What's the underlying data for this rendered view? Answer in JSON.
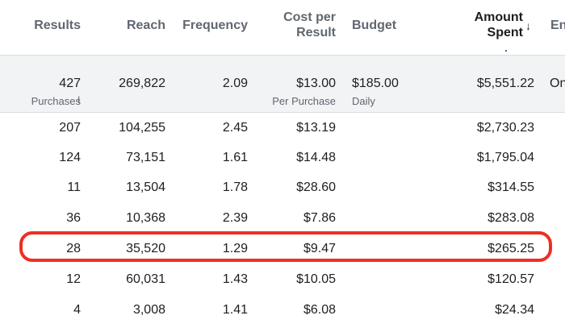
{
  "columns": {
    "results": "Results",
    "reach": "Reach",
    "frequency": "Frequency",
    "cost_per_result_line1": "Cost per",
    "cost_per_result_line2": "Result",
    "budget": "Budget",
    "amount_spent_line1": "Amount",
    "amount_spent_line2": "Spent",
    "sort_indicator": "↓",
    "ends_partial": "En"
  },
  "summary": {
    "results": "427",
    "results_sub": "Purchases",
    "reach": "269,822",
    "frequency": "2.09",
    "cost_per_result": "$13.00",
    "cost_per_result_sub": "Per Purchase",
    "budget": "$185.00",
    "budget_sub": "Daily",
    "amount_spent": "$5,551.22",
    "ends_partial": "On"
  },
  "rows": [
    {
      "results": "207",
      "reach": "104,255",
      "frequency": "2.45",
      "cost_per_result": "$13.19",
      "amount_spent": "$2,730.23"
    },
    {
      "results": "124",
      "reach": "73,151",
      "frequency": "1.61",
      "cost_per_result": "$14.48",
      "amount_spent": "$1,795.04"
    },
    {
      "results": "11",
      "reach": "13,504",
      "frequency": "1.78",
      "cost_per_result": "$28.60",
      "amount_spent": "$314.55"
    },
    {
      "results": "36",
      "reach": "10,368",
      "frequency": "2.39",
      "cost_per_result": "$7.86",
      "amount_spent": "$283.08"
    },
    {
      "results": "28",
      "reach": "35,520",
      "frequency": "1.29",
      "cost_per_result": "$9.47",
      "amount_spent": "$265.25"
    },
    {
      "results": "12",
      "reach": "60,031",
      "frequency": "1.43",
      "cost_per_result": "$10.05",
      "amount_spent": "$120.57"
    },
    {
      "results": "4",
      "reach": "3,008",
      "frequency": "1.41",
      "cost_per_result": "$6.08",
      "amount_spent": "$24.34"
    }
  ],
  "colors": {
    "highlight": "#ee2f22",
    "summary_bg": "#f2f3f5",
    "muted_text": "#606770"
  }
}
